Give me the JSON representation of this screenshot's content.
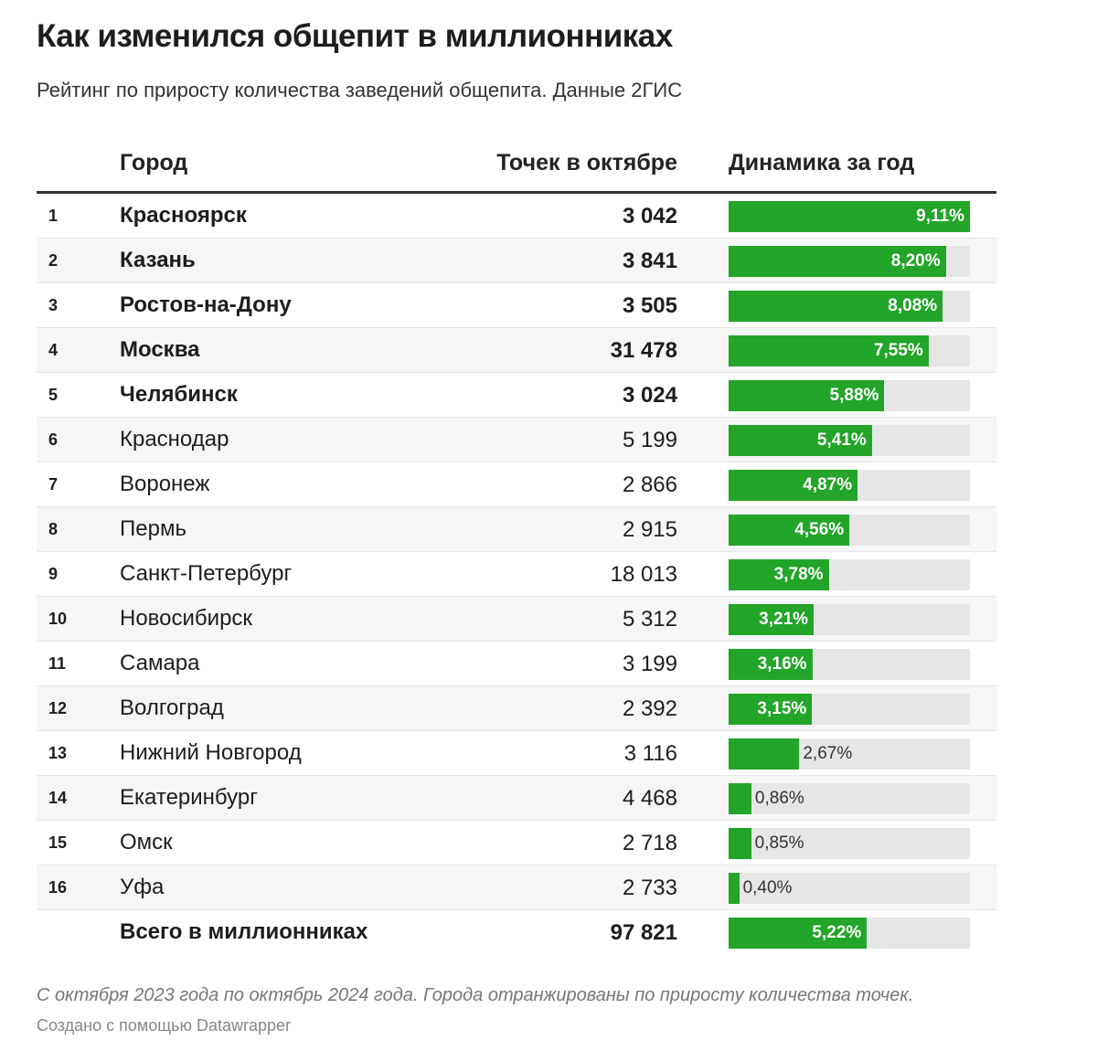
{
  "title": "Как изменился общепит в миллионниках",
  "subtitle": "Рейтинг по приросту количества заведений общепита. Данные 2ГИС",
  "note": "С октября 2023 года по октябрь 2024 года. Города отранжированы по приросту количества точек.",
  "credit": "Создано с помощью Datawrapper",
  "colors": {
    "bar": "#22a528",
    "track": "#e6e6e6"
  },
  "chart_data": {
    "type": "table",
    "columns": [
      "Город",
      "Точек в октябре",
      "Динамика за год"
    ],
    "bar_max": 9.11,
    "rows": [
      {
        "rank": "1",
        "city": "Красноярск",
        "points": "3 042",
        "change": 9.11,
        "change_label": "9,11%",
        "bold": true
      },
      {
        "rank": "2",
        "city": "Казань",
        "points": "3 841",
        "change": 8.2,
        "change_label": "8,20%",
        "bold": true
      },
      {
        "rank": "3",
        "city": "Ростов-на-Дону",
        "points": "3 505",
        "change": 8.08,
        "change_label": "8,08%",
        "bold": true
      },
      {
        "rank": "4",
        "city": "Москва",
        "points": "31 478",
        "change": 7.55,
        "change_label": "7,55%",
        "bold": true
      },
      {
        "rank": "5",
        "city": "Челябинск",
        "points": "3 024",
        "change": 5.88,
        "change_label": "5,88%",
        "bold": true
      },
      {
        "rank": "6",
        "city": "Краснодар",
        "points": "5 199",
        "change": 5.41,
        "change_label": "5,41%",
        "bold": false
      },
      {
        "rank": "7",
        "city": "Воронеж",
        "points": "2 866",
        "change": 4.87,
        "change_label": "4,87%",
        "bold": false
      },
      {
        "rank": "8",
        "city": "Пермь",
        "points": "2 915",
        "change": 4.56,
        "change_label": "4,56%",
        "bold": false
      },
      {
        "rank": "9",
        "city": "Санкт-Петербург",
        "points": "18 013",
        "change": 3.78,
        "change_label": "3,78%",
        "bold": false
      },
      {
        "rank": "10",
        "city": "Новосибирск",
        "points": "5 312",
        "change": 3.21,
        "change_label": "3,21%",
        "bold": false
      },
      {
        "rank": "11",
        "city": "Самара",
        "points": "3 199",
        "change": 3.16,
        "change_label": "3,16%",
        "bold": false
      },
      {
        "rank": "12",
        "city": "Волгоград",
        "points": "2 392",
        "change": 3.15,
        "change_label": "3,15%",
        "bold": false
      },
      {
        "rank": "13",
        "city": "Нижний Новгород",
        "points": "3 116",
        "change": 2.67,
        "change_label": "2,67%",
        "bold": false
      },
      {
        "rank": "14",
        "city": "Екатеринбург",
        "points": "4 468",
        "change": 0.86,
        "change_label": "0,86%",
        "bold": false
      },
      {
        "rank": "15",
        "city": "Омск",
        "points": "2 718",
        "change": 0.85,
        "change_label": "0,85%",
        "bold": false
      },
      {
        "rank": "16",
        "city": "Уфа",
        "points": "2 733",
        "change": 0.4,
        "change_label": "0,40%",
        "bold": false
      },
      {
        "rank": "",
        "city": "Всего в миллионниках",
        "points": "97 821",
        "change": 5.22,
        "change_label": "5,22%",
        "bold": true
      }
    ]
  }
}
